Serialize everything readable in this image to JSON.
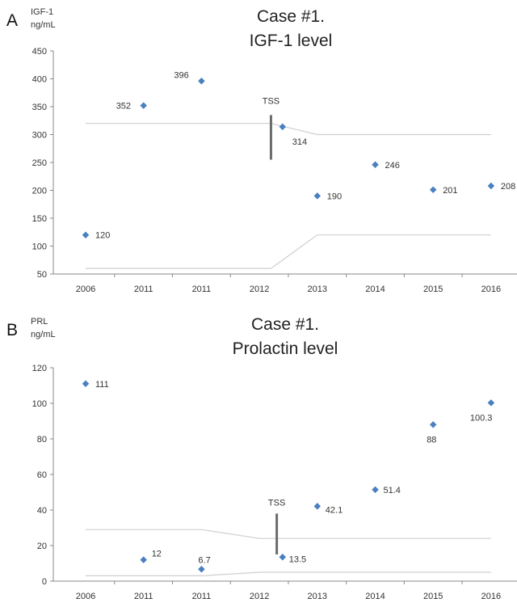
{
  "charts": [
    {
      "letter": "A",
      "unit_line1": "IGF-1",
      "unit_line2": "ng/mL",
      "title_line1": "Case #1.",
      "title_line2": "IGF-1 level",
      "marker_label": "TSS"
    },
    {
      "letter": "B",
      "unit_line1": "PRL",
      "unit_line2": "ng/mL",
      "title_line1": "Case #1.",
      "title_line2": "Prolactin level",
      "marker_label": "TSS"
    }
  ],
  "chart_data": [
    {
      "type": "scatter",
      "title": "Case #1. IGF-1 level",
      "ylabel": "IGF-1 ng/mL",
      "categories": [
        "2006",
        "2011",
        "2011",
        "2012",
        "2013",
        "2014",
        "2015",
        "2016"
      ],
      "ylim": [
        50,
        450
      ],
      "yticks": [
        50,
        100,
        150,
        200,
        250,
        300,
        350,
        400,
        450
      ],
      "grid": false,
      "series": [
        {
          "points": [
            {
              "x": 0,
              "y": 120,
              "label": "120"
            },
            {
              "x": 1,
              "y": 352,
              "label": "352"
            },
            {
              "x": 2,
              "y": 396,
              "label": "396"
            },
            {
              "x": 3.4,
              "y": 314,
              "label": "314"
            },
            {
              "x": 4,
              "y": 190,
              "label": "190"
            },
            {
              "x": 5,
              "y": 246,
              "label": "246"
            },
            {
              "x": 6,
              "y": 201,
              "label": "201"
            },
            {
              "x": 7,
              "y": 208,
              "label": "208"
            }
          ]
        }
      ],
      "reference_lines": [
        {
          "x": [
            0,
            2,
            3.2,
            4,
            7
          ],
          "y": [
            320,
            320,
            320,
            300,
            300
          ]
        },
        {
          "x": [
            0,
            2,
            3.2,
            4,
            7
          ],
          "y": [
            60,
            60,
            60,
            120,
            120
          ]
        }
      ],
      "event_marker": {
        "label": "TSS",
        "x": 3.2,
        "y_from": 255,
        "y_to": 335
      },
      "marker_color": "#4a7fc0"
    },
    {
      "type": "scatter",
      "title": "Case #1. Prolactin level",
      "ylabel": "PRL ng/mL",
      "categories": [
        "2006",
        "2011",
        "2011",
        "2012",
        "2013",
        "2014",
        "2015",
        "2016"
      ],
      "ylim": [
        0,
        120
      ],
      "yticks": [
        0,
        20,
        40,
        60,
        80,
        100,
        120
      ],
      "grid": false,
      "series": [
        {
          "points": [
            {
              "x": 0,
              "y": 111,
              "label": "111"
            },
            {
              "x": 1,
              "y": 12,
              "label": "12"
            },
            {
              "x": 2,
              "y": 6.7,
              "label": "6.7"
            },
            {
              "x": 3.4,
              "y": 13.5,
              "label": "13.5"
            },
            {
              "x": 4,
              "y": 42.1,
              "label": "42.1"
            },
            {
              "x": 5,
              "y": 51.4,
              "label": "51.4"
            },
            {
              "x": 6,
              "y": 88,
              "label": "88"
            },
            {
              "x": 7,
              "y": 100.3,
              "label": "100.3"
            }
          ]
        }
      ],
      "reference_lines": [
        {
          "x": [
            0,
            2,
            3,
            7
          ],
          "y": [
            29,
            29,
            24,
            24
          ]
        },
        {
          "x": [
            0,
            2,
            3,
            7
          ],
          "y": [
            3,
            3,
            5,
            5
          ]
        }
      ],
      "event_marker": {
        "label": "TSS",
        "x": 3.3,
        "y_from": 15,
        "y_to": 38
      },
      "marker_color": "#4a7fc0"
    }
  ]
}
